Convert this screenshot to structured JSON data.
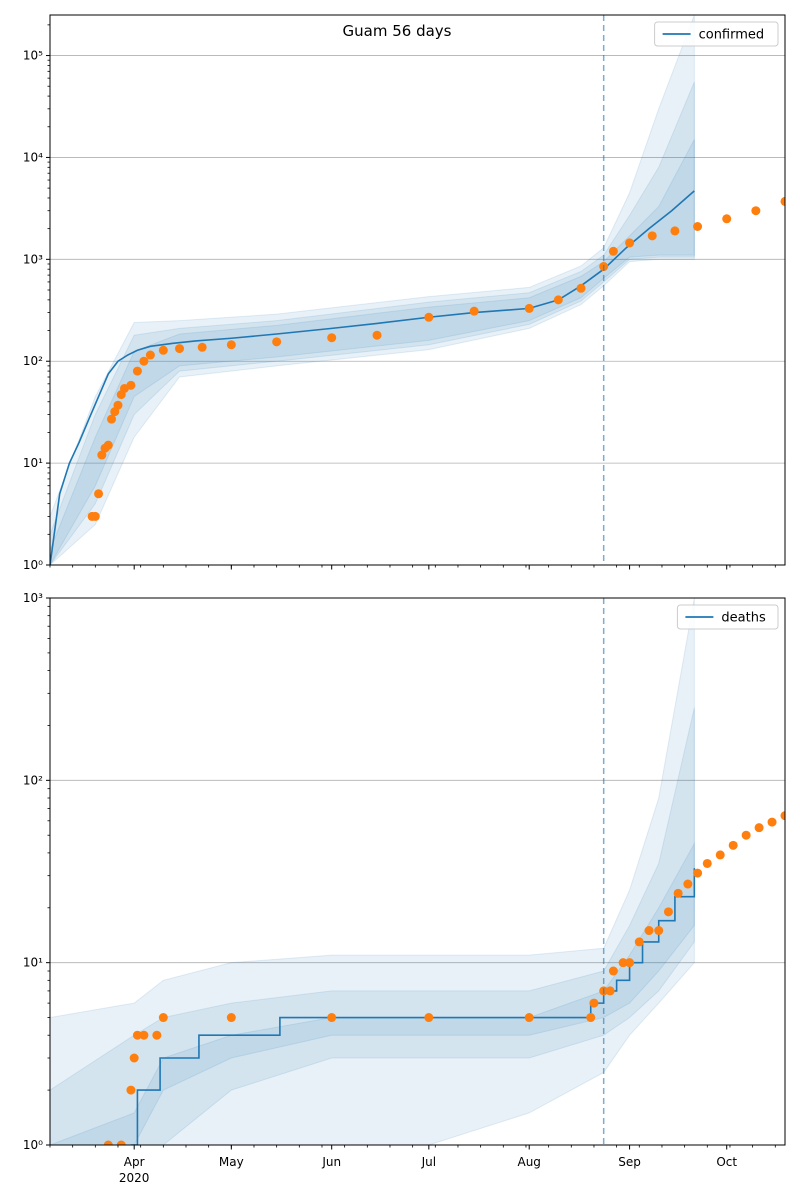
{
  "colors": {
    "model": "#1f77b4",
    "observed": "#ff7f0e",
    "grid": "#b0b0b0",
    "band": "#1f77b4"
  },
  "chart_data": [
    {
      "type": "line",
      "title": "Guam 56 days",
      "yscale": "log",
      "ylim": [
        1,
        250000
      ],
      "xlim": [
        "2020-03-06",
        "2020-10-19"
      ],
      "y_ticks": [
        1,
        10,
        100,
        1000,
        10000,
        100000
      ],
      "y_tick_labels": [
        "10⁰",
        "10¹",
        "10²",
        "10³",
        "10⁴",
        "10⁵"
      ],
      "grid": "horizontal",
      "legend": {
        "position": "top-right",
        "entries": [
          "confirmed"
        ]
      },
      "forecast_start": "2020-08-24",
      "series": [
        {
          "name": "confirmed",
          "kind": "model_median",
          "x": [
            "2020-03-06",
            "2020-03-09",
            "2020-03-12",
            "2020-03-15",
            "2020-03-18",
            "2020-03-21",
            "2020-03-24",
            "2020-03-27",
            "2020-03-30",
            "2020-04-02",
            "2020-04-06",
            "2020-04-13",
            "2020-04-20",
            "2020-05-01",
            "2020-05-15",
            "2020-06-01",
            "2020-06-15",
            "2020-07-01",
            "2020-07-15",
            "2020-08-01",
            "2020-08-10",
            "2020-08-17",
            "2020-08-24",
            "2020-08-31",
            "2020-09-07",
            "2020-09-14",
            "2020-09-21"
          ],
          "y": [
            1,
            5,
            10,
            16,
            27,
            45,
            75,
            100,
            115,
            128,
            140,
            150,
            158,
            168,
            185,
            210,
            235,
            270,
            300,
            330,
            400,
            550,
            800,
            1300,
            2000,
            3000,
            4700
          ]
        },
        {
          "name": "confirmed observed",
          "kind": "observed_points",
          "x": [
            "2020-03-19",
            "2020-03-20",
            "2020-03-21",
            "2020-03-22",
            "2020-03-23",
            "2020-03-24",
            "2020-03-25",
            "2020-03-26",
            "2020-03-27",
            "2020-03-28",
            "2020-03-29",
            "2020-03-31",
            "2020-04-02",
            "2020-04-04",
            "2020-04-06",
            "2020-04-10",
            "2020-04-15",
            "2020-04-22",
            "2020-05-01",
            "2020-05-15",
            "2020-06-01",
            "2020-06-15",
            "2020-07-01",
            "2020-07-15",
            "2020-08-01",
            "2020-08-10",
            "2020-08-17",
            "2020-08-24",
            "2020-08-27",
            "2020-09-01",
            "2020-09-08",
            "2020-09-15",
            "2020-09-22",
            "2020-10-01",
            "2020-10-10",
            "2020-10-19"
          ],
          "y": [
            3,
            3,
            5,
            12,
            14,
            15,
            27,
            32,
            37,
            47,
            54,
            58,
            80,
            100,
            115,
            128,
            133,
            137,
            145,
            155,
            170,
            180,
            270,
            310,
            330,
            400,
            520,
            850,
            1200,
            1450,
            1700,
            1900,
            2100,
            2500,
            3000,
            3700
          ]
        }
      ],
      "bands": [
        {
          "x": [
            "2020-03-06",
            "2020-03-20",
            "2020-04-01",
            "2020-04-15",
            "2020-05-15",
            "2020-07-01",
            "2020-08-01",
            "2020-08-17",
            "2020-08-24",
            "2020-09-01",
            "2020-09-10",
            "2020-09-21"
          ],
          "lower": [
            1,
            6,
            45,
            90,
            110,
            160,
            250,
            420,
            650,
            1050,
            1100,
            1100
          ],
          "upper": [
            1.4,
            18,
            125,
            185,
            225,
            340,
            420,
            680,
            950,
            1700,
            3300,
            15000
          ]
        },
        {
          "x": [
            "2020-03-06",
            "2020-03-20",
            "2020-04-01",
            "2020-04-15",
            "2020-05-15",
            "2020-07-01",
            "2020-08-01",
            "2020-08-17",
            "2020-08-24",
            "2020-09-01",
            "2020-09-10",
            "2020-09-21"
          ],
          "lower": [
            1,
            4,
            30,
            80,
            100,
            145,
            230,
            390,
            600,
            1000,
            1050,
            1050
          ],
          "upper": [
            2,
            30,
            180,
            210,
            250,
            380,
            470,
            760,
            1100,
            2700,
            8000,
            55000
          ]
        },
        {
          "x": [
            "2020-03-06",
            "2020-03-20",
            "2020-04-01",
            "2020-04-15",
            "2020-05-15",
            "2020-07-01",
            "2020-08-01",
            "2020-08-17",
            "2020-08-24",
            "2020-09-01",
            "2020-09-10",
            "2020-09-21"
          ],
          "lower": [
            1,
            2.5,
            18,
            70,
            90,
            130,
            210,
            360,
            550,
            950,
            1000,
            1000
          ],
          "upper": [
            3,
            45,
            240,
            250,
            290,
            430,
            530,
            860,
            1300,
            4500,
            30000,
            250000
          ]
        }
      ]
    },
    {
      "type": "line",
      "yscale": "log",
      "ylim": [
        1,
        1000
      ],
      "xlim": [
        "2020-03-06",
        "2020-10-19"
      ],
      "y_ticks": [
        1,
        10,
        100,
        1000
      ],
      "y_tick_labels": [
        "10⁰",
        "10¹",
        "10²",
        "10³"
      ],
      "x_tick_labels": [
        {
          "date": "2020-04-01",
          "label": "Apr"
        },
        {
          "date": "2020-05-01",
          "label": "May"
        },
        {
          "date": "2020-06-01",
          "label": "Jun"
        },
        {
          "date": "2020-07-01",
          "label": "Jul"
        },
        {
          "date": "2020-08-01",
          "label": "Aug"
        },
        {
          "date": "2020-09-01",
          "label": "Sep"
        },
        {
          "date": "2020-10-01",
          "label": "Oct"
        }
      ],
      "x_year_label": {
        "date": "2020-04-01",
        "label": "2020"
      },
      "grid": "horizontal",
      "legend": {
        "position": "top-right",
        "entries": [
          "deaths"
        ]
      },
      "forecast_start": "2020-08-24",
      "series": [
        {
          "name": "deaths",
          "kind": "model_step",
          "x": [
            "2020-03-31",
            "2020-04-02",
            "2020-04-09",
            "2020-04-21",
            "2020-05-16",
            "2020-06-01",
            "2020-07-01",
            "2020-08-01",
            "2020-08-11",
            "2020-08-20",
            "2020-08-24",
            "2020-08-28",
            "2020-09-01",
            "2020-09-05",
            "2020-09-10",
            "2020-09-15",
            "2020-09-21"
          ],
          "y": [
            1,
            2,
            3,
            4,
            5,
            5,
            5,
            5,
            5,
            6,
            7,
            8,
            10,
            13,
            17,
            23,
            33
          ]
        },
        {
          "name": "deaths observed",
          "kind": "observed_points",
          "x": [
            "2020-03-24",
            "2020-03-28",
            "2020-03-31",
            "2020-04-01",
            "2020-04-02",
            "2020-04-04",
            "2020-04-08",
            "2020-04-10",
            "2020-05-01",
            "2020-06-01",
            "2020-07-01",
            "2020-08-01",
            "2020-08-20",
            "2020-08-21",
            "2020-08-24",
            "2020-08-26",
            "2020-08-27",
            "2020-08-30",
            "2020-09-01",
            "2020-09-04",
            "2020-09-07",
            "2020-09-10",
            "2020-09-13",
            "2020-09-16",
            "2020-09-19",
            "2020-09-22",
            "2020-09-25",
            "2020-09-29",
            "2020-10-03",
            "2020-10-07",
            "2020-10-11",
            "2020-10-15",
            "2020-10-19"
          ],
          "y": [
            1,
            1,
            2,
            3,
            4,
            4,
            4,
            5,
            5,
            5,
            5,
            5,
            5,
            6,
            7,
            7,
            9,
            10,
            10,
            13,
            15,
            15,
            19,
            24,
            27,
            31,
            35,
            39,
            44,
            50,
            55,
            59,
            64
          ]
        }
      ],
      "bands": [
        {
          "x": [
            "2020-03-06",
            "2020-04-01",
            "2020-04-10",
            "2020-05-01",
            "2020-06-01",
            "2020-07-01",
            "2020-08-01",
            "2020-08-24",
            "2020-09-01",
            "2020-09-10",
            "2020-09-21"
          ],
          "lower": [
            1,
            1,
            2,
            3,
            4,
            4,
            4,
            5,
            6,
            9,
            16
          ],
          "upper": [
            1,
            1.5,
            3,
            4,
            5,
            5,
            5,
            7,
            11,
            20,
            45
          ]
        },
        {
          "x": [
            "2020-03-06",
            "2020-04-01",
            "2020-04-10",
            "2020-05-01",
            "2020-06-01",
            "2020-07-01",
            "2020-08-01",
            "2020-08-24",
            "2020-09-01",
            "2020-09-10",
            "2020-09-21"
          ],
          "lower": [
            1,
            1,
            1,
            2,
            3,
            3,
            3,
            4,
            5,
            7,
            13
          ],
          "upper": [
            2,
            4,
            5,
            6,
            7,
            7,
            7,
            9,
            16,
            35,
            250
          ]
        },
        {
          "x": [
            "2020-03-06",
            "2020-04-01",
            "2020-04-10",
            "2020-05-01",
            "2020-06-01",
            "2020-07-01",
            "2020-08-01",
            "2020-08-24",
            "2020-09-01",
            "2020-09-10",
            "2020-09-21"
          ],
          "lower": [
            1,
            1,
            1,
            1,
            1,
            1,
            1.5,
            2.5,
            4,
            6,
            10
          ],
          "upper": [
            5,
            6,
            8,
            10,
            11,
            11,
            11,
            12,
            25,
            80,
            1000
          ]
        }
      ]
    }
  ]
}
